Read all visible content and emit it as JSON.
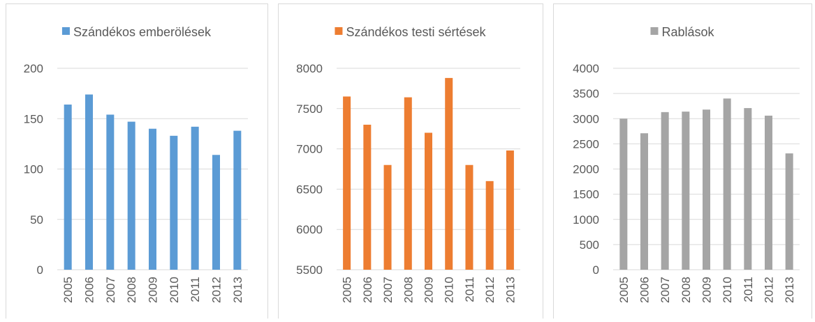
{
  "chart_data": [
    {
      "type": "bar",
      "categories": [
        "2005",
        "2006",
        "2007",
        "2008",
        "2009",
        "2010",
        "2011",
        "2012",
        "2013"
      ],
      "series": [
        {
          "name": "Szándékos emberölések",
          "color": "#5b9bd5",
          "values": [
            164,
            174,
            154,
            147,
            140,
            133,
            142,
            114,
            138
          ]
        }
      ],
      "ylim": [
        0,
        200
      ],
      "yticks": [
        0,
        50,
        100,
        150,
        200
      ],
      "grid": true
    },
    {
      "type": "bar",
      "categories": [
        "2005",
        "2006",
        "2007",
        "2008",
        "2009",
        "2010",
        "2011",
        "2012",
        "2013"
      ],
      "series": [
        {
          "name": "Szándékos testi sértések",
          "color": "#ed7d31",
          "values": [
            7650,
            7300,
            6800,
            7640,
            7200,
            7880,
            6800,
            6600,
            6980
          ]
        }
      ],
      "ylim": [
        5500,
        8000
      ],
      "yticks": [
        5500,
        6000,
        6500,
        7000,
        7500,
        8000
      ],
      "grid": true
    },
    {
      "type": "bar",
      "categories": [
        "2005",
        "2006",
        "2007",
        "2008",
        "2009",
        "2010",
        "2011",
        "2012",
        "2013"
      ],
      "series": [
        {
          "name": "Rablások",
          "color": "#a5a5a5",
          "values": [
            3000,
            2710,
            3130,
            3140,
            3180,
            3400,
            3210,
            3060,
            2310
          ]
        }
      ],
      "ylim": [
        0,
        4000
      ],
      "yticks": [
        0,
        500,
        1000,
        1500,
        2000,
        2500,
        3000,
        3500,
        4000
      ],
      "grid": true
    }
  ]
}
